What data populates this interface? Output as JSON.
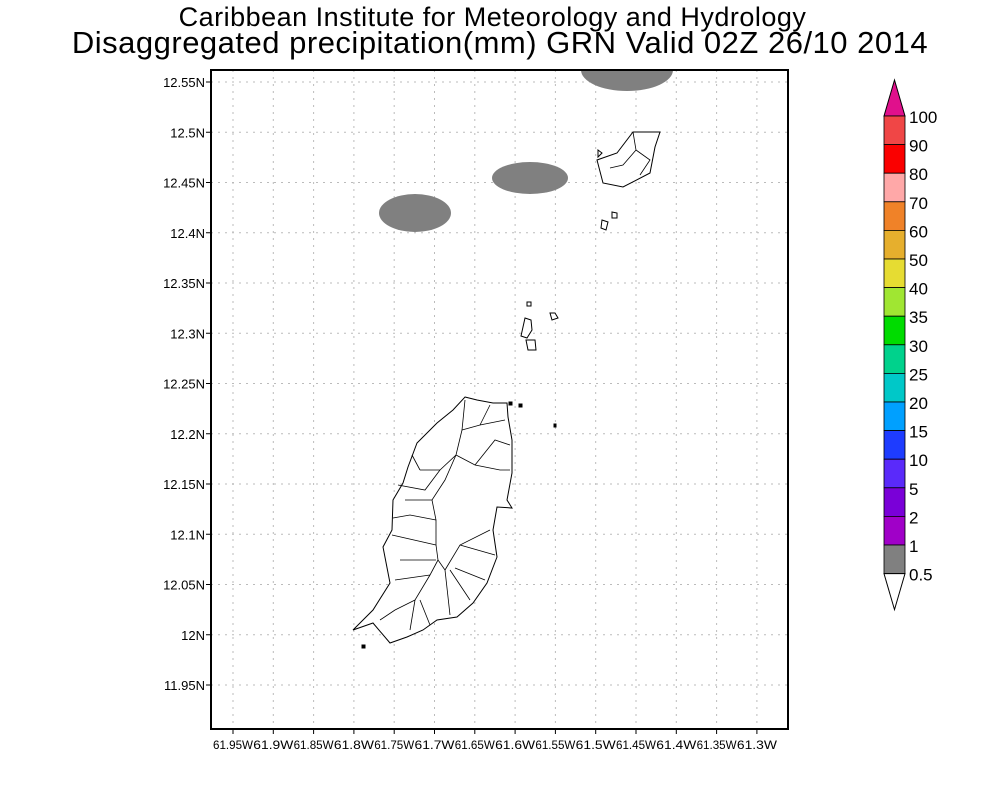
{
  "title": {
    "line1": "Caribbean Institute for Meteorology and Hydrology",
    "line2": "Disaggregated precipitation(mm) GRN Valid 02Z 26/10 2014"
  },
  "map": {
    "lat_ticks": [
      "12.55N",
      "12.5N",
      "12.45N",
      "12.4N",
      "12.35N",
      "12.3N",
      "12.25N",
      "12.2N",
      "12.15N",
      "12.1N",
      "12.05N",
      "12N",
      "11.95N"
    ],
    "lon_ticks": [
      "61.95W",
      "61.9W",
      "61.85W",
      "61.8W",
      "61.75W",
      "61.7W",
      "61.65W",
      "61.6W",
      "61.55W",
      "61.5W",
      "61.45W",
      "61.4W",
      "61.35W",
      "61.3W"
    ]
  },
  "colorbar": {
    "labels": [
      "100",
      "90",
      "80",
      "70",
      "60",
      "50",
      "40",
      "35",
      "30",
      "25",
      "20",
      "15",
      "10",
      "5",
      "2",
      "1",
      "0.5"
    ],
    "top_arrow_color": "#e0108c",
    "bottom_arrow_color": "#ffffff",
    "colors": [
      "#f04646",
      "#fa0000",
      "#ffa8a8",
      "#f08228",
      "#e6af2d",
      "#e6dc32",
      "#a0e632",
      "#00dc00",
      "#00d28c",
      "#00c8c8",
      "#00a0ff",
      "#1e3cff",
      "#5a2afa",
      "#7a00d8",
      "#a000c8",
      "#808080"
    ]
  }
}
